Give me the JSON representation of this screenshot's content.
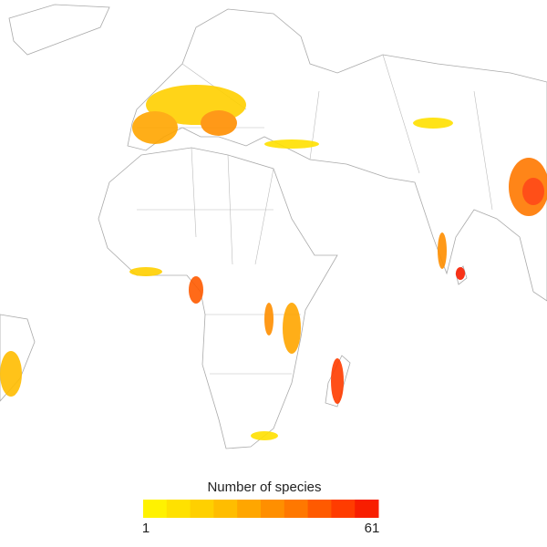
{
  "legend": {
    "title": "Number of species",
    "min_label": 1,
    "max_label": 61,
    "colors": [
      "#fff200",
      "#ffe100",
      "#ffd000",
      "#ffbd00",
      "#ffa600",
      "#ff8f00",
      "#ff7800",
      "#ff5a00",
      "#ff3c00",
      "#f81e00"
    ]
  }
}
